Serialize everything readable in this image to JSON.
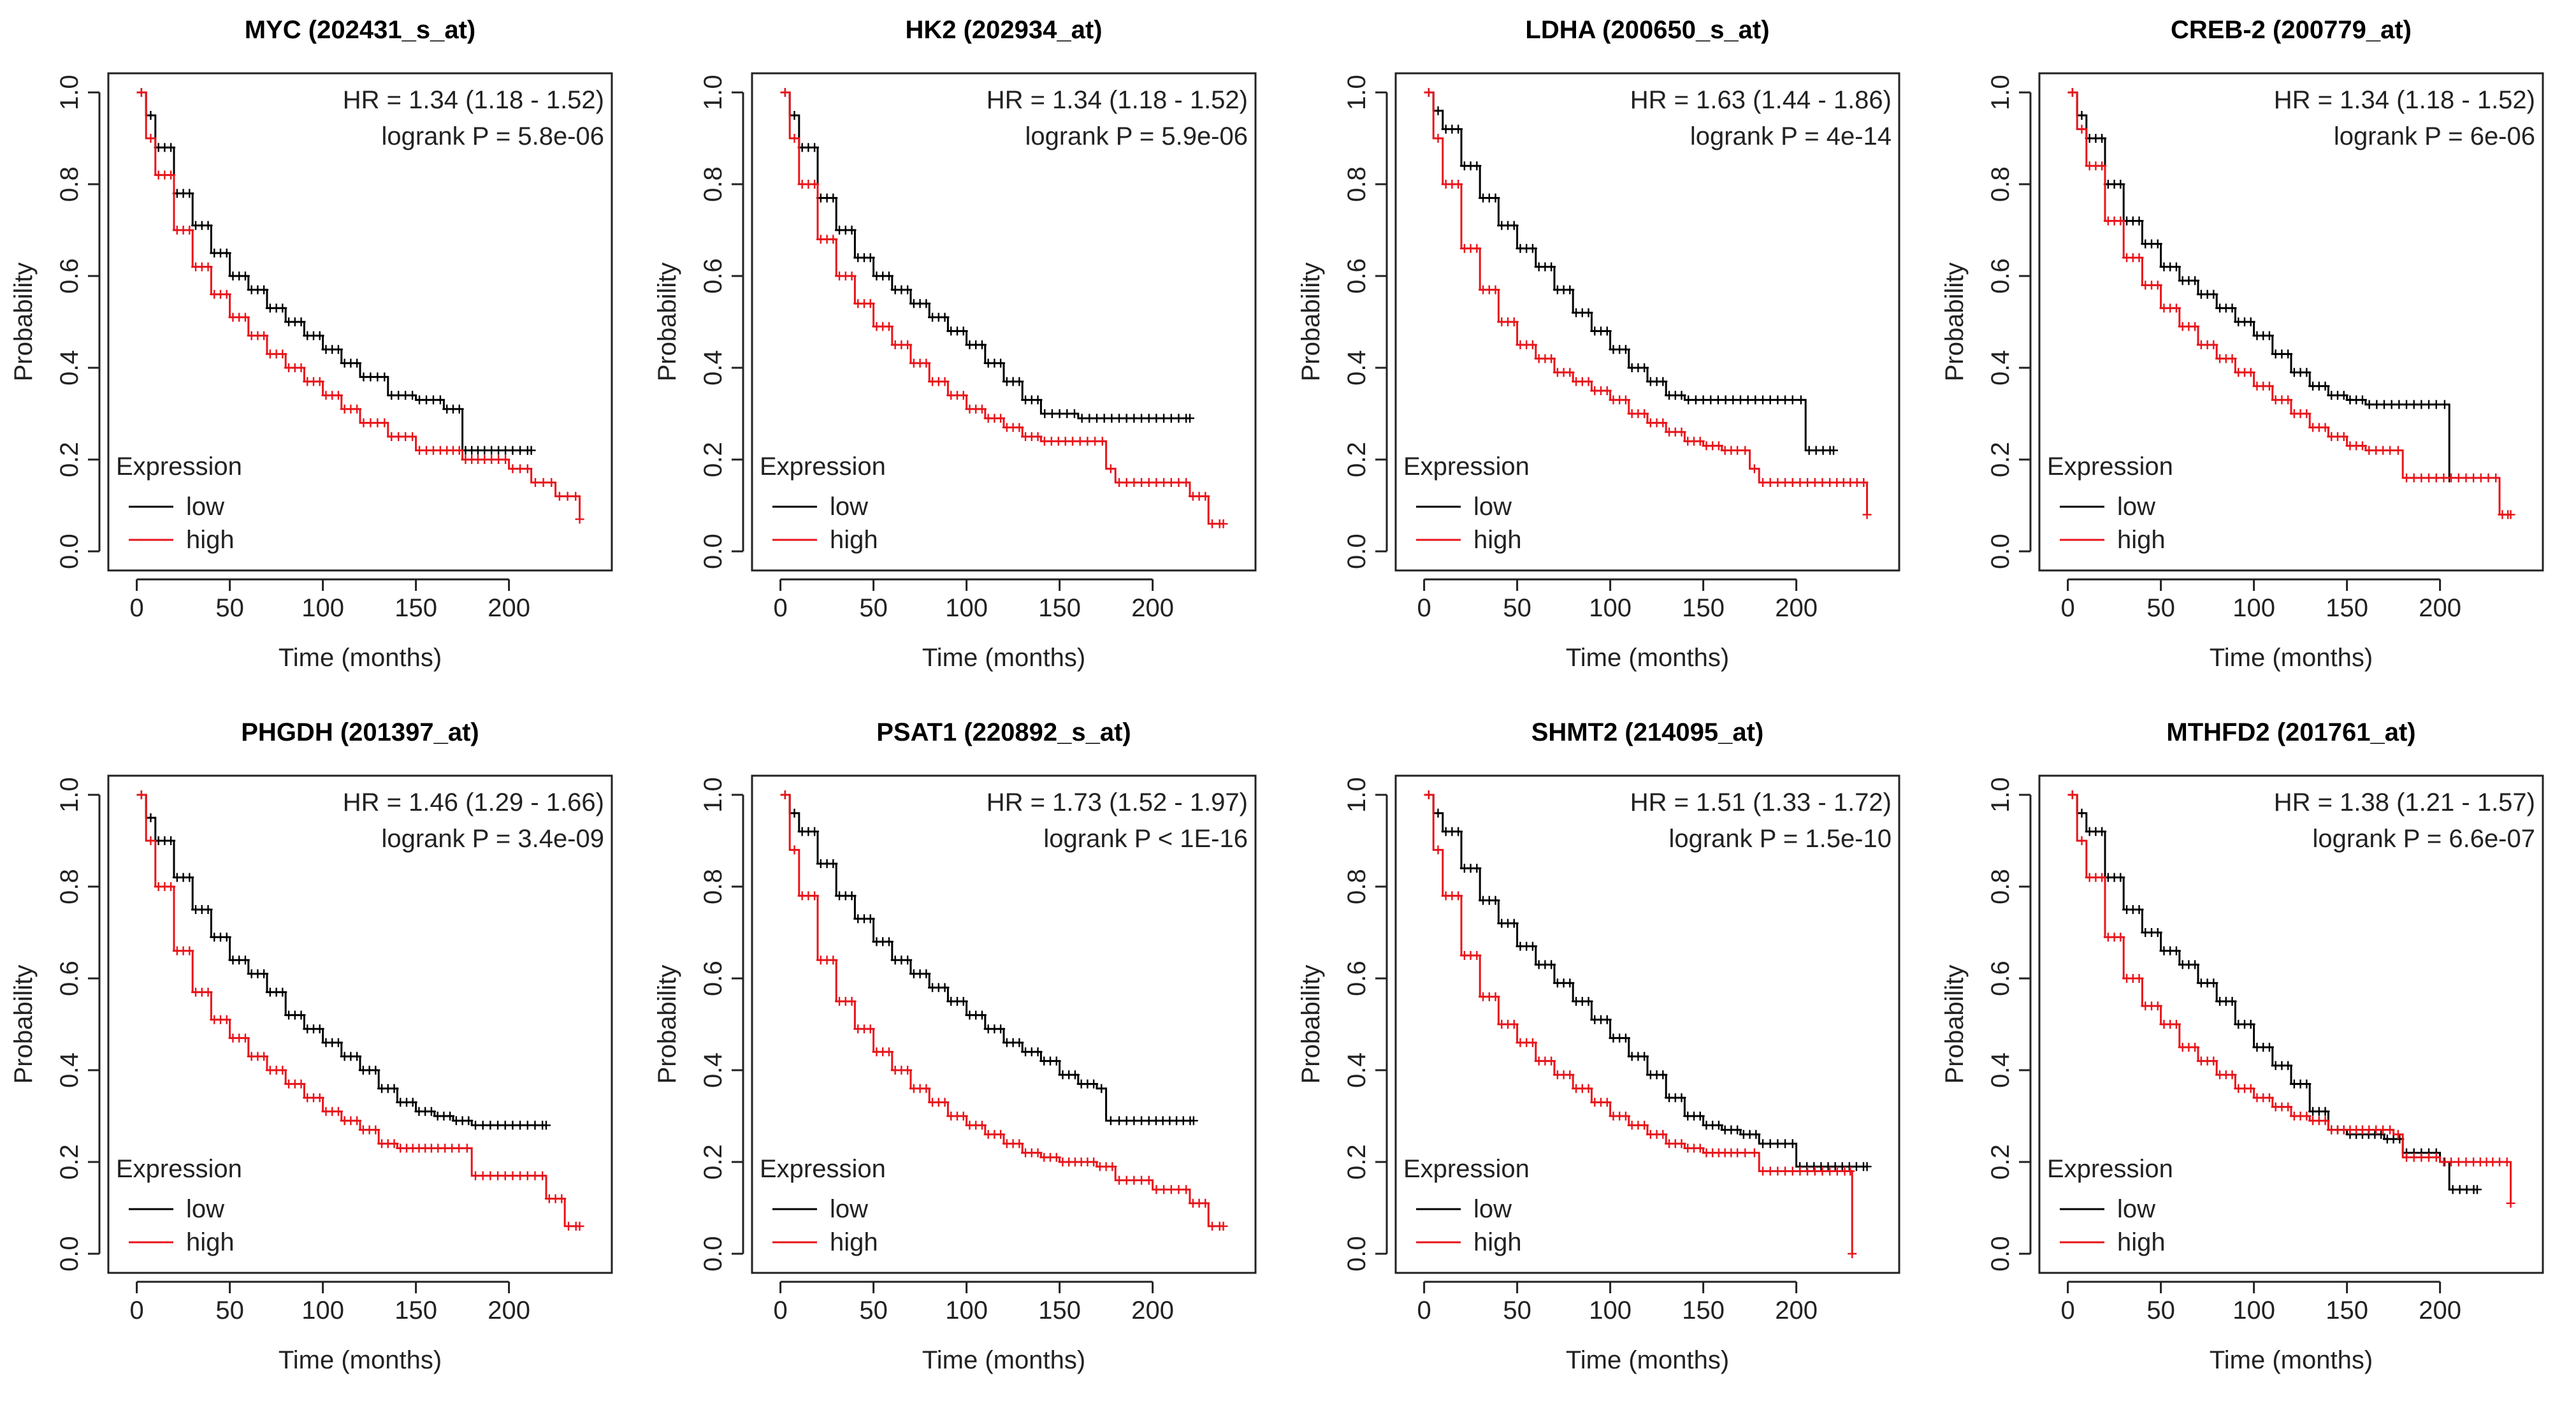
{
  "common": {
    "xlabel": "Time (months)",
    "ylabel": "Probability",
    "x_ticks": [
      0,
      50,
      100,
      150,
      200
    ],
    "y_ticks": [
      "0.0",
      "0.2",
      "0.4",
      "0.6",
      "0.8",
      "1.0"
    ],
    "legend_title": "Expression",
    "legend_low": "low",
    "legend_high": "high",
    "colors": {
      "low": "#000000",
      "high": "#e8141a"
    }
  },
  "chart_data": [
    {
      "type": "line",
      "title": "MYC (202431_s_at)",
      "xlabel": "Time (months)",
      "ylabel": "Probability",
      "xlim": [
        0,
        240
      ],
      "ylim": [
        0,
        1
      ],
      "hr": "HR = 1.34 (1.18 - 1.52)",
      "logrank": "logrank P = 5.8e-06",
      "legend": [
        "low",
        "high"
      ],
      "series": [
        {
          "name": "low",
          "x": [
            0,
            5,
            10,
            20,
            30,
            40,
            50,
            60,
            70,
            80,
            90,
            100,
            110,
            120,
            135,
            150,
            165,
            175,
            185,
            200,
            212
          ],
          "y": [
            1,
            0.95,
            0.88,
            0.78,
            0.71,
            0.65,
            0.6,
            0.57,
            0.53,
            0.5,
            0.47,
            0.44,
            0.41,
            0.38,
            0.34,
            0.33,
            0.31,
            0.22,
            0.22,
            0.22,
            0.22
          ]
        },
        {
          "name": "high",
          "x": [
            0,
            5,
            10,
            20,
            30,
            40,
            50,
            60,
            70,
            80,
            90,
            100,
            110,
            120,
            135,
            150,
            165,
            175,
            185,
            200,
            212,
            225,
            238
          ],
          "y": [
            1,
            0.9,
            0.82,
            0.7,
            0.62,
            0.56,
            0.51,
            0.47,
            0.43,
            0.4,
            0.37,
            0.34,
            0.31,
            0.28,
            0.25,
            0.22,
            0.22,
            0.2,
            0.2,
            0.18,
            0.15,
            0.12,
            0.07
          ]
        }
      ]
    },
    {
      "type": "line",
      "title": "HK2 (202934_at)",
      "xlabel": "Time (months)",
      "ylabel": "Probability",
      "xlim": [
        0,
        240
      ],
      "ylim": [
        0,
        1
      ],
      "hr": "HR = 1.34 (1.18 - 1.52)",
      "logrank": "logrank P = 5.9e-06",
      "legend": [
        "low",
        "high"
      ],
      "series": [
        {
          "name": "low",
          "x": [
            0,
            5,
            10,
            20,
            30,
            40,
            50,
            60,
            70,
            80,
            90,
            100,
            110,
            120,
            130,
            140,
            160,
            180,
            200,
            220
          ],
          "y": [
            1,
            0.95,
            0.88,
            0.77,
            0.7,
            0.64,
            0.6,
            0.57,
            0.54,
            0.51,
            0.48,
            0.45,
            0.41,
            0.37,
            0.33,
            0.3,
            0.29,
            0.29,
            0.29,
            0.29
          ]
        },
        {
          "name": "high",
          "x": [
            0,
            5,
            10,
            20,
            30,
            40,
            50,
            60,
            70,
            80,
            90,
            100,
            110,
            120,
            130,
            140,
            155,
            175,
            180,
            200,
            220,
            230,
            238
          ],
          "y": [
            1,
            0.9,
            0.8,
            0.68,
            0.6,
            0.54,
            0.49,
            0.45,
            0.41,
            0.37,
            0.34,
            0.31,
            0.29,
            0.27,
            0.25,
            0.24,
            0.24,
            0.18,
            0.15,
            0.15,
            0.12,
            0.06,
            0.06
          ]
        }
      ]
    },
    {
      "type": "line",
      "title": "LDHA (200650_s_at)",
      "xlabel": "Time (months)",
      "ylabel": "Probability",
      "xlim": [
        0,
        240
      ],
      "ylim": [
        0,
        1
      ],
      "hr": "HR = 1.63 (1.44 - 1.86)",
      "logrank": "logrank P = 4e-14",
      "legend": [
        "low",
        "high"
      ],
      "series": [
        {
          "name": "low",
          "x": [
            0,
            5,
            10,
            20,
            30,
            40,
            50,
            60,
            70,
            80,
            90,
            100,
            110,
            120,
            130,
            140,
            160,
            180,
            200,
            205,
            220
          ],
          "y": [
            1,
            0.96,
            0.92,
            0.84,
            0.77,
            0.71,
            0.66,
            0.62,
            0.57,
            0.52,
            0.48,
            0.44,
            0.4,
            0.37,
            0.34,
            0.33,
            0.33,
            0.33,
            0.33,
            0.22,
            0.22
          ]
        },
        {
          "name": "high",
          "x": [
            0,
            5,
            10,
            20,
            30,
            40,
            50,
            60,
            70,
            80,
            90,
            100,
            110,
            120,
            130,
            140,
            150,
            160,
            170,
            175,
            180,
            200,
            220,
            238
          ],
          "y": [
            1,
            0.9,
            0.8,
            0.66,
            0.57,
            0.5,
            0.45,
            0.42,
            0.39,
            0.37,
            0.35,
            0.33,
            0.3,
            0.28,
            0.26,
            0.24,
            0.23,
            0.22,
            0.22,
            0.18,
            0.15,
            0.15,
            0.15,
            0.08
          ]
        }
      ]
    },
    {
      "type": "line",
      "title": "CREB-2 (200779_at)",
      "xlabel": "Time (months)",
      "ylabel": "Probability",
      "xlim": [
        0,
        240
      ],
      "ylim": [
        0,
        1
      ],
      "hr": "HR = 1.34 (1.18 - 1.52)",
      "logrank": "logrank P = 6e-06",
      "legend": [
        "low",
        "high"
      ],
      "series": [
        {
          "name": "low",
          "x": [
            0,
            5,
            10,
            20,
            30,
            40,
            50,
            60,
            70,
            80,
            90,
            100,
            110,
            120,
            130,
            140,
            150,
            160,
            180,
            200,
            205
          ],
          "y": [
            1,
            0.95,
            0.9,
            0.8,
            0.72,
            0.67,
            0.62,
            0.59,
            0.56,
            0.53,
            0.5,
            0.47,
            0.43,
            0.39,
            0.36,
            0.34,
            0.33,
            0.32,
            0.32,
            0.32,
            0.16
          ]
        },
        {
          "name": "high",
          "x": [
            0,
            5,
            10,
            20,
            30,
            40,
            50,
            60,
            70,
            80,
            90,
            100,
            110,
            120,
            130,
            140,
            150,
            160,
            175,
            180,
            200,
            220,
            232,
            238
          ],
          "y": [
            1,
            0.92,
            0.84,
            0.72,
            0.64,
            0.58,
            0.53,
            0.49,
            0.45,
            0.42,
            0.39,
            0.36,
            0.33,
            0.3,
            0.27,
            0.25,
            0.23,
            0.22,
            0.22,
            0.16,
            0.16,
            0.16,
            0.08,
            0.08
          ]
        }
      ]
    },
    {
      "type": "line",
      "title": "PHGDH (201397_at)",
      "xlabel": "Time (months)",
      "ylabel": "Probability",
      "xlim": [
        0,
        240
      ],
      "ylim": [
        0,
        1
      ],
      "hr": "HR = 1.46 (1.29 - 1.66)",
      "logrank": "logrank P = 3.4e-09",
      "legend": [
        "low",
        "high"
      ],
      "series": [
        {
          "name": "low",
          "x": [
            0,
            5,
            10,
            20,
            30,
            40,
            50,
            60,
            70,
            80,
            90,
            100,
            110,
            120,
            130,
            140,
            150,
            160,
            170,
            180,
            200,
            220
          ],
          "y": [
            1,
            0.95,
            0.9,
            0.82,
            0.75,
            0.69,
            0.64,
            0.61,
            0.57,
            0.52,
            0.49,
            0.46,
            0.43,
            0.4,
            0.36,
            0.33,
            0.31,
            0.3,
            0.29,
            0.28,
            0.28,
            0.28
          ]
        },
        {
          "name": "high",
          "x": [
            0,
            5,
            10,
            20,
            30,
            40,
            50,
            60,
            70,
            80,
            90,
            100,
            110,
            120,
            130,
            140,
            150,
            160,
            175,
            180,
            200,
            220,
            230,
            238
          ],
          "y": [
            1,
            0.9,
            0.8,
            0.66,
            0.57,
            0.51,
            0.47,
            0.43,
            0.4,
            0.37,
            0.34,
            0.31,
            0.29,
            0.27,
            0.24,
            0.23,
            0.23,
            0.23,
            0.23,
            0.17,
            0.17,
            0.12,
            0.06,
            0.06
          ]
        }
      ]
    },
    {
      "type": "line",
      "title": "PSAT1 (220892_s_at)",
      "xlabel": "Time (months)",
      "ylabel": "Probability",
      "xlim": [
        0,
        240
      ],
      "ylim": [
        0,
        1
      ],
      "hr": "HR = 1.73 (1.52 - 1.97)",
      "logrank": "logrank P < 1E-16",
      "legend": [
        "low",
        "high"
      ],
      "series": [
        {
          "name": "low",
          "x": [
            0,
            5,
            10,
            20,
            30,
            40,
            50,
            60,
            70,
            80,
            90,
            100,
            110,
            120,
            130,
            140,
            150,
            160,
            170,
            175,
            180,
            200,
            222
          ],
          "y": [
            1,
            0.96,
            0.92,
            0.85,
            0.78,
            0.73,
            0.68,
            0.64,
            0.61,
            0.58,
            0.55,
            0.52,
            0.49,
            0.46,
            0.44,
            0.42,
            0.39,
            0.37,
            0.36,
            0.29,
            0.29,
            0.29,
            0.29
          ]
        },
        {
          "name": "high",
          "x": [
            0,
            5,
            10,
            20,
            30,
            40,
            50,
            60,
            70,
            80,
            90,
            100,
            110,
            120,
            130,
            140,
            150,
            160,
            170,
            180,
            200,
            220,
            230,
            238
          ],
          "y": [
            1,
            0.88,
            0.78,
            0.64,
            0.55,
            0.49,
            0.44,
            0.4,
            0.36,
            0.33,
            0.3,
            0.28,
            0.26,
            0.24,
            0.22,
            0.21,
            0.2,
            0.2,
            0.19,
            0.16,
            0.14,
            0.11,
            0.06,
            0.06
          ]
        }
      ]
    },
    {
      "type": "line",
      "title": "SHMT2 (214095_at)",
      "xlabel": "Time (months)",
      "ylabel": "Probability",
      "xlim": [
        0,
        240
      ],
      "ylim": [
        0,
        1
      ],
      "hr": "HR = 1.51 (1.33 - 1.72)",
      "logrank": "logrank P = 1.5e-10",
      "legend": [
        "low",
        "high"
      ],
      "series": [
        {
          "name": "low",
          "x": [
            0,
            5,
            10,
            20,
            30,
            40,
            50,
            60,
            70,
            80,
            90,
            100,
            110,
            120,
            130,
            140,
            150,
            160,
            170,
            180,
            200,
            238
          ],
          "y": [
            1,
            0.96,
            0.92,
            0.84,
            0.77,
            0.72,
            0.67,
            0.63,
            0.59,
            0.55,
            0.51,
            0.47,
            0.43,
            0.39,
            0.34,
            0.3,
            0.28,
            0.27,
            0.26,
            0.24,
            0.19,
            0.19
          ]
        },
        {
          "name": "high",
          "x": [
            0,
            5,
            10,
            20,
            30,
            40,
            50,
            60,
            70,
            80,
            90,
            100,
            110,
            120,
            130,
            140,
            150,
            160,
            170,
            175,
            180,
            200,
            228,
            230
          ],
          "y": [
            1,
            0.88,
            0.78,
            0.65,
            0.56,
            0.5,
            0.46,
            0.42,
            0.39,
            0.36,
            0.33,
            0.3,
            0.28,
            0.26,
            0.24,
            0.23,
            0.22,
            0.22,
            0.22,
            0.22,
            0.18,
            0.18,
            0.18,
            0.0
          ]
        }
      ]
    },
    {
      "type": "line",
      "title": "MTHFD2 (201761_at)",
      "xlabel": "Time (months)",
      "ylabel": "Probability",
      "xlim": [
        0,
        240
      ],
      "ylim": [
        0,
        1
      ],
      "hr": "HR = 1.38 (1.21 - 1.57)",
      "logrank": "logrank P = 6.6e-07",
      "legend": [
        "low",
        "high"
      ],
      "series": [
        {
          "name": "low",
          "x": [
            0,
            5,
            10,
            20,
            30,
            40,
            50,
            60,
            70,
            80,
            90,
            100,
            110,
            120,
            130,
            140,
            150,
            160,
            170,
            180,
            200,
            205,
            220
          ],
          "y": [
            1,
            0.96,
            0.92,
            0.82,
            0.75,
            0.7,
            0.66,
            0.63,
            0.59,
            0.55,
            0.5,
            0.45,
            0.41,
            0.37,
            0.31,
            0.27,
            0.26,
            0.26,
            0.25,
            0.22,
            0.2,
            0.14,
            0.14
          ]
        },
        {
          "name": "high",
          "x": [
            0,
            5,
            10,
            20,
            30,
            40,
            50,
            60,
            70,
            80,
            90,
            100,
            110,
            120,
            130,
            140,
            150,
            160,
            175,
            180,
            200,
            220,
            230,
            238
          ],
          "y": [
            1,
            0.9,
            0.82,
            0.69,
            0.6,
            0.54,
            0.5,
            0.45,
            0.42,
            0.39,
            0.36,
            0.34,
            0.32,
            0.3,
            0.29,
            0.27,
            0.27,
            0.27,
            0.26,
            0.21,
            0.2,
            0.2,
            0.2,
            0.11
          ]
        }
      ]
    }
  ]
}
